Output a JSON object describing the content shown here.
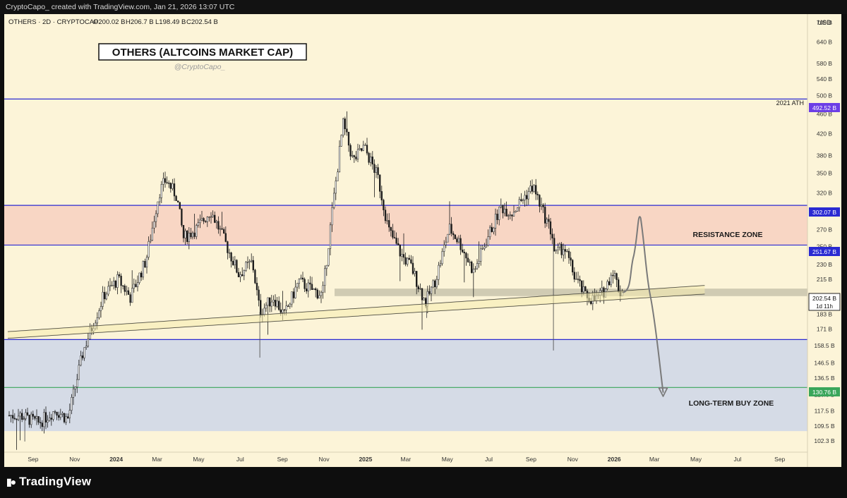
{
  "header": {
    "caption": "CryptoCapo_ created with TradingView.com, Jan 21, 2026 13:07 UTC"
  },
  "legend": {
    "symbol": "OTHERS · 2D · CRYPTOCAP",
    "open": "O200.02 B",
    "high": "H206.7 B",
    "low": "L198.49 B",
    "close": "C202.54 B"
  },
  "currency": "USD",
  "title_box": "OTHERS (ALTCOINS MARKET CAP)",
  "author": "@CryptoCapo_",
  "annotations": {
    "ath": "2021 ATH",
    "resistance": "RESISTANCE ZONE",
    "buy_zone": "LONG-TERM BUY ZONE",
    "countdown": "1d 11h"
  },
  "price_tags": {
    "ath": "492.52 B",
    "res_top": "302.07 B",
    "res_bottom": "251.67 B",
    "last": "202.54 B",
    "buy": "130.76 B"
  },
  "colors": {
    "background": "#fcf4d8",
    "resistance_zone": "#f8d6c4",
    "buy_zone": "#d5dbe6",
    "level_line": "#2a2ad2",
    "buy_line": "#3aa65a",
    "ath_tag": "#6c3ee6",
    "candle": "#1a1a1a"
  },
  "footer": {
    "brand": "TradingView",
    "logo_icon": "tradingview-logo-icon"
  },
  "chart_data": {
    "type": "candlestick",
    "title": "OTHERS (ALTCOINS MARKET CAP)",
    "timeframe": "2D",
    "scale": "log",
    "y_unit": "B USD",
    "ylim": [
      98,
      780
    ],
    "x_ticks": [
      "Sep",
      "Nov",
      "2024",
      "Mar",
      "May",
      "Jul",
      "Sep",
      "Nov",
      "2025",
      "Mar",
      "May",
      "Jul",
      "Sep",
      "Nov",
      "2026",
      "Mar",
      "May",
      "Jul",
      "Sep"
    ],
    "y_ticks": [
      "700 B",
      "640 B",
      "580 B",
      "540 B",
      "500 B",
      "460 B",
      "420 B",
      "380 B",
      "350 B",
      "320 B",
      "290 B",
      "270 B",
      "250 B",
      "230 B",
      "215 B",
      "200 B",
      "183 B",
      "171 B",
      "158.5 B",
      "146.5 B",
      "136.5 B",
      "126.5 B",
      "117.5 B",
      "109.5 B",
      "102.3 B"
    ],
    "levels": [
      {
        "name": "2021 ATH",
        "value": 492.52
      },
      {
        "name": "Resistance top",
        "value": 302.07
      },
      {
        "name": "Resistance bottom",
        "value": 251.67
      },
      {
        "name": "Support",
        "value": 163
      },
      {
        "name": "Buy level",
        "value": 130.76
      }
    ],
    "zones": [
      {
        "name": "RESISTANCE ZONE",
        "from": 251.67,
        "to": 302.07
      },
      {
        "name": "LONG-TERM BUY ZONE",
        "from": 107,
        "to": 163
      }
    ],
    "close_path": [
      {
        "date": "2023-08-20",
        "close": 115
      },
      {
        "date": "2023-09-15",
        "close": 111
      },
      {
        "date": "2023-10-10",
        "close": 118
      },
      {
        "date": "2023-10-28",
        "close": 113
      },
      {
        "date": "2023-11-20",
        "close": 155
      },
      {
        "date": "2023-12-20",
        "close": 200
      },
      {
        "date": "2024-01-10",
        "close": 215
      },
      {
        "date": "2024-01-28",
        "close": 198
      },
      {
        "date": "2024-02-20",
        "close": 235
      },
      {
        "date": "2024-03-10",
        "close": 320
      },
      {
        "date": "2024-03-20",
        "close": 340
      },
      {
        "date": "2024-04-05",
        "close": 315
      },
      {
        "date": "2024-04-15",
        "close": 260
      },
      {
        "date": "2024-05-05",
        "close": 272
      },
      {
        "date": "2024-05-25",
        "close": 295
      },
      {
        "date": "2024-06-15",
        "close": 255
      },
      {
        "date": "2024-07-05",
        "close": 220
      },
      {
        "date": "2024-07-25",
        "close": 233
      },
      {
        "date": "2024-08-05",
        "close": 185
      },
      {
        "date": "2024-08-25",
        "close": 198
      },
      {
        "date": "2024-09-10",
        "close": 182
      },
      {
        "date": "2024-10-01",
        "close": 213
      },
      {
        "date": "2024-10-20",
        "close": 205
      },
      {
        "date": "2024-11-05",
        "close": 200
      },
      {
        "date": "2024-11-20",
        "close": 300
      },
      {
        "date": "2024-12-05",
        "close": 440
      },
      {
        "date": "2024-12-20",
        "close": 370
      },
      {
        "date": "2025-01-05",
        "close": 395
      },
      {
        "date": "2025-01-25",
        "close": 345
      },
      {
        "date": "2025-02-10",
        "close": 270
      },
      {
        "date": "2025-03-01",
        "close": 240
      },
      {
        "date": "2025-03-15",
        "close": 228
      },
      {
        "date": "2025-04-05",
        "close": 193
      },
      {
        "date": "2025-04-20",
        "close": 215
      },
      {
        "date": "2025-05-10",
        "close": 272
      },
      {
        "date": "2025-05-25",
        "close": 255
      },
      {
        "date": "2025-06-15",
        "close": 222
      },
      {
        "date": "2025-07-05",
        "close": 260
      },
      {
        "date": "2025-07-25",
        "close": 300
      },
      {
        "date": "2025-08-10",
        "close": 292
      },
      {
        "date": "2025-08-25",
        "close": 310
      },
      {
        "date": "2025-09-10",
        "close": 330
      },
      {
        "date": "2025-09-25",
        "close": 292
      },
      {
        "date": "2025-10-08",
        "close": 265
      },
      {
        "date": "2025-10-12",
        "close": 240
      },
      {
        "date": "2025-10-25",
        "close": 250
      },
      {
        "date": "2025-11-10",
        "close": 218
      },
      {
        "date": "2025-11-25",
        "close": 200
      },
      {
        "date": "2025-12-10",
        "close": 195
      },
      {
        "date": "2025-12-25",
        "close": 205
      },
      {
        "date": "2026-01-05",
        "close": 225
      },
      {
        "date": "2026-01-15",
        "close": 203
      },
      {
        "date": "2026-01-21",
        "close": 202.54
      }
    ],
    "projection_path": [
      {
        "date": "2026-01-21",
        "value": 202.54
      },
      {
        "date": "2026-02-05",
        "value": 240
      },
      {
        "date": "2026-02-15",
        "value": 285
      },
      {
        "date": "2026-03-01",
        "value": 200
      },
      {
        "date": "2026-03-20",
        "value": 128
      }
    ]
  }
}
